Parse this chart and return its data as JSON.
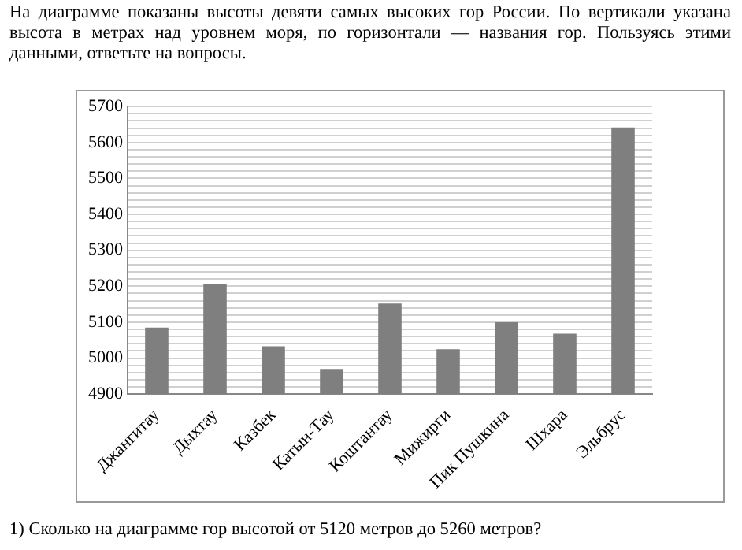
{
  "chart_data": {
    "type": "bar",
    "title": "На диаграмме показаны высоты девяти самых высоких гор России. По вертикали указана высота в метрах над уровнем моря, по горизонтали — названия гор. Пользуясь этими данными, ответьте на вопросы.",
    "annotations": [
      "1) Сколько на диаграмме гор высотой от 5120 метров до 5260 метров?"
    ],
    "categories": [
      "Джангитау",
      "Дыхтау",
      "Казбек",
      "Катын-Тау",
      "Коштантау",
      "Мижирги",
      "Пик Пушкина",
      "Шхара",
      "Эльбрус"
    ],
    "values": [
      5085,
      5205,
      5033,
      4970,
      5152,
      5025,
      5100,
      5068,
      5642
    ],
    "color": "#7f7f7f",
    "ylim": [
      4900,
      5700
    ],
    "yticks": [
      4900,
      {
        "value": 4920,
        "label": null
      },
      {
        "value": 4940,
        "label": null
      },
      {
        "value": 4960,
        "label": null
      },
      {
        "value": 4980,
        "label": null
      },
      5000,
      {
        "value": 5020,
        "label": null
      },
      {
        "value": 5040,
        "label": null
      },
      {
        "value": 5060,
        "label": null
      },
      {
        "value": 5080,
        "label": null
      },
      5100,
      {
        "value": 5120,
        "label": null
      },
      {
        "value": 5140,
        "label": null
      },
      {
        "value": 5160,
        "label": null
      },
      {
        "value": 5180,
        "label": null
      },
      5200,
      {
        "value": 5220,
        "label": null
      },
      {
        "value": 5240,
        "label": null
      },
      {
        "value": 5260,
        "label": null
      },
      {
        "value": 5280,
        "label": null
      },
      5300,
      {
        "value": 5320,
        "label": null
      },
      {
        "value": 5340,
        "label": null
      },
      {
        "value": 5360,
        "label": null
      },
      {
        "value": 5380,
        "label": null
      },
      5400,
      {
        "value": 5420,
        "label": null
      },
      {
        "value": 5440,
        "label": null
      },
      {
        "value": 5460,
        "label": null
      },
      {
        "value": 5480,
        "label": null
      },
      5500,
      {
        "value": 5520,
        "label": null
      },
      {
        "value": 5540,
        "label": null
      },
      {
        "value": 5560,
        "label": null
      },
      {
        "value": 5580,
        "label": null
      },
      5600,
      {
        "value": 5620,
        "label": null
      },
      {
        "value": 5640,
        "label": null
      },
      {
        "value": 5660,
        "label": null
      },
      {
        "value": 5680,
        "label": null
      },
      5700
    ],
    "grid": "y",
    "legend": false
  }
}
